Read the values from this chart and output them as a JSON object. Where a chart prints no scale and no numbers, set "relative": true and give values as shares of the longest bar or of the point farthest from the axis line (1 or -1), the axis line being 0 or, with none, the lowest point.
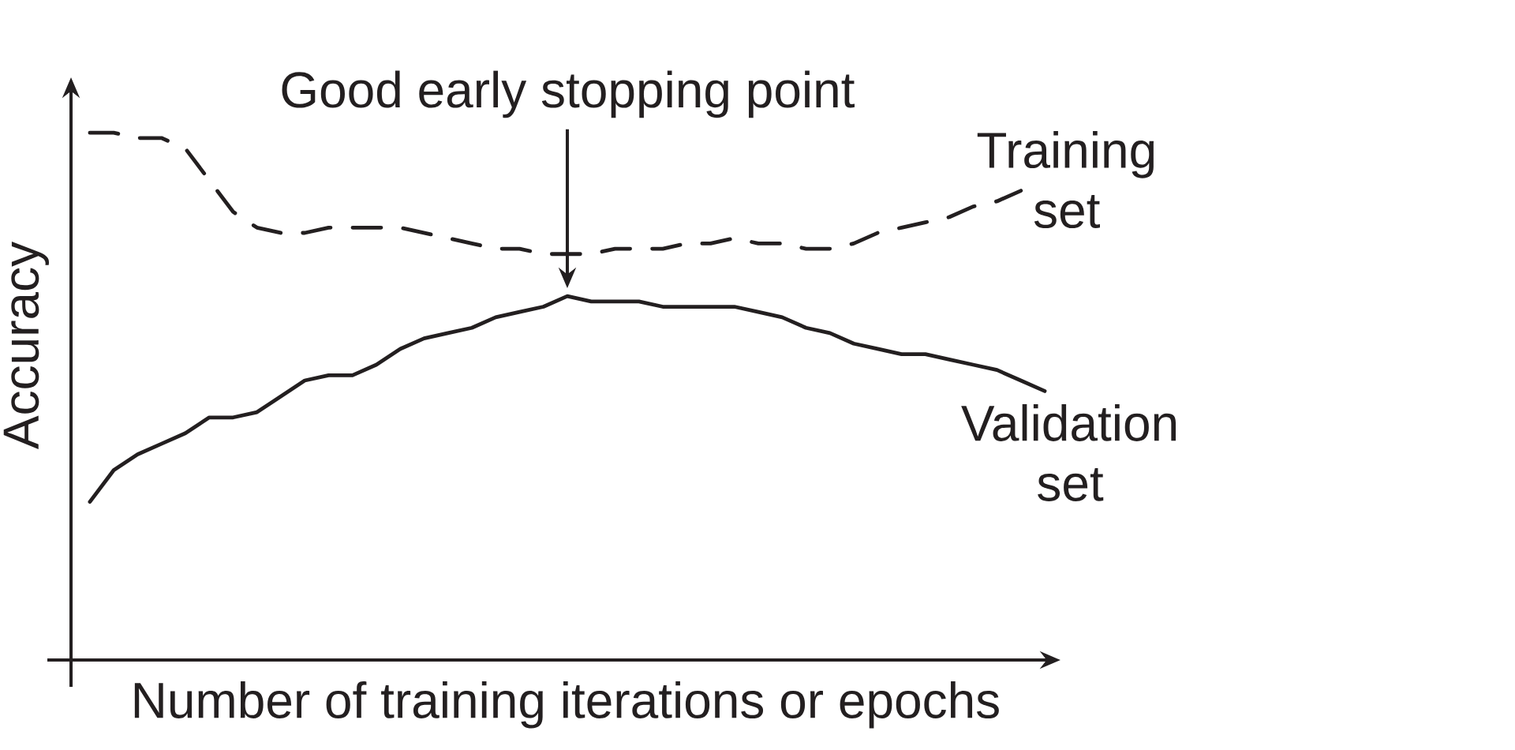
{
  "chart_data": {
    "type": "line",
    "xlabel": "Number of training iterations or epochs",
    "ylabel": "Accuracy",
    "annotations": [
      "Good early stopping point"
    ],
    "relative": true,
    "categories": [
      null,
      null,
      null,
      null,
      null,
      null,
      null,
      null,
      null,
      null,
      null,
      null,
      null,
      null,
      null,
      null,
      null,
      null,
      null,
      null,
      null,
      null,
      null,
      null,
      null,
      null,
      null,
      null,
      null,
      null,
      null,
      null,
      null,
      null,
      null,
      null,
      null,
      null,
      null,
      null,
      null
    ],
    "series": [
      {
        "name": "Training set",
        "color": "#231f20",
        "line_style": "dashed",
        "values": [
          1.0,
          1.0,
          0.99,
          0.99,
          0.97,
          0.91,
          0.85,
          0.82,
          0.81,
          0.81,
          0.82,
          0.82,
          0.82,
          0.82,
          0.81,
          0.8,
          0.79,
          0.78,
          0.78,
          0.77,
          0.77,
          0.77,
          0.78,
          0.78,
          0.78,
          0.79,
          0.79,
          0.8,
          0.79,
          0.79,
          0.78,
          0.78,
          0.79,
          0.81,
          0.82,
          0.83,
          0.84,
          0.86,
          0.87,
          0.89,
          null
        ]
      },
      {
        "name": "Validation set",
        "color": "#231f20",
        "line_style": "solid",
        "values": [
          0.3,
          0.36,
          0.39,
          0.41,
          0.43,
          0.46,
          0.46,
          0.47,
          0.5,
          0.53,
          0.54,
          0.54,
          0.56,
          0.59,
          0.61,
          0.62,
          0.63,
          0.65,
          0.66,
          0.67,
          0.69,
          0.68,
          0.68,
          0.68,
          0.67,
          0.67,
          0.67,
          0.67,
          0.66,
          0.65,
          0.63,
          0.62,
          0.6,
          0.59,
          0.58,
          0.58,
          0.57,
          0.56,
          0.55,
          0.53,
          0.51
        ]
      }
    ]
  }
}
